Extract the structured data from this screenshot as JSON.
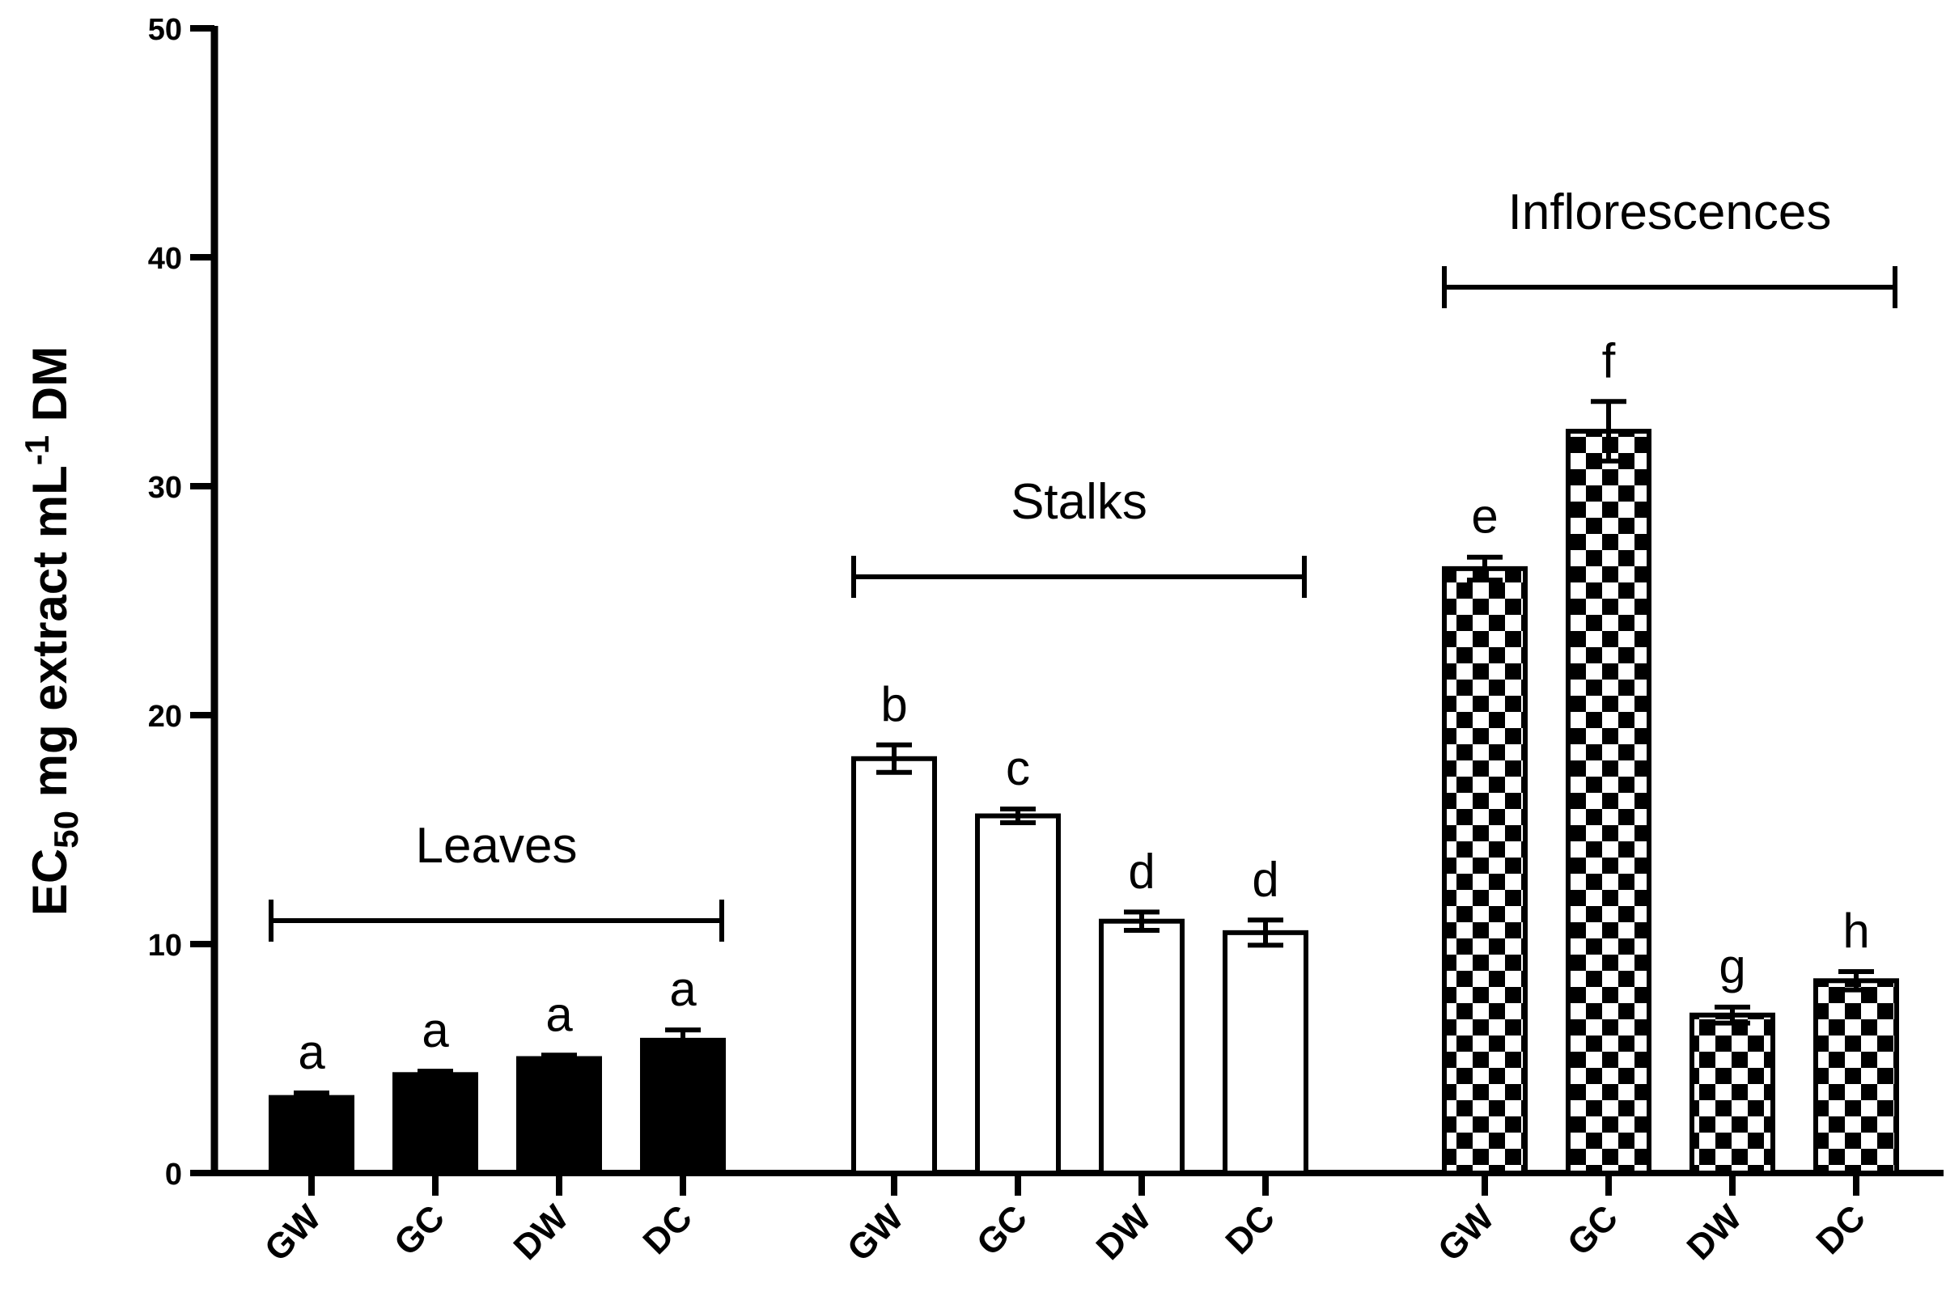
{
  "chart_data": {
    "type": "bar",
    "ylabel": {
      "parts": [
        {
          "text": "EC",
          "style": "normal"
        },
        {
          "text": "50",
          "style": "sub"
        },
        {
          "text": " mg extract mL",
          "style": "normal"
        },
        {
          "text": "-1",
          "style": "sup"
        },
        {
          "text": " DM",
          "style": "normal"
        }
      ]
    },
    "ylim": [
      0,
      50
    ],
    "yticks": [
      0,
      10,
      20,
      30,
      40,
      50
    ],
    "grid": false,
    "colors": {
      "axis": "#000000",
      "leaves_fill": "#000000",
      "stalks_fill": "#ffffff",
      "checker_dark": "#000000",
      "checker_light": "#ffffff"
    },
    "groups": [
      {
        "name": "Leaves",
        "fill": "solid",
        "categories": [
          "GW",
          "GC",
          "DW",
          "DC"
        ],
        "values": [
          3.3,
          4.3,
          5.0,
          5.8
        ],
        "errors": [
          0.2,
          0.15,
          0.15,
          0.45
        ],
        "letters": [
          "a",
          "a",
          "a",
          "a"
        ]
      },
      {
        "name": "Stalks",
        "fill": "white",
        "categories": [
          "GW",
          "GC",
          "DW",
          "DC"
        ],
        "values": [
          18.1,
          15.6,
          11.0,
          10.5
        ],
        "errors": [
          0.6,
          0.3,
          0.4,
          0.55
        ],
        "letters": [
          "b",
          "c",
          "d",
          "d"
        ]
      },
      {
        "name": "Inflorescences",
        "fill": "checkered",
        "categories": [
          "GW",
          "GC",
          "DW",
          "DC"
        ],
        "values": [
          26.4,
          32.4,
          6.9,
          8.4
        ],
        "errors": [
          0.5,
          1.3,
          0.35,
          0.4
        ],
        "letters": [
          "e",
          "f",
          "g",
          "h"
        ]
      }
    ]
  }
}
